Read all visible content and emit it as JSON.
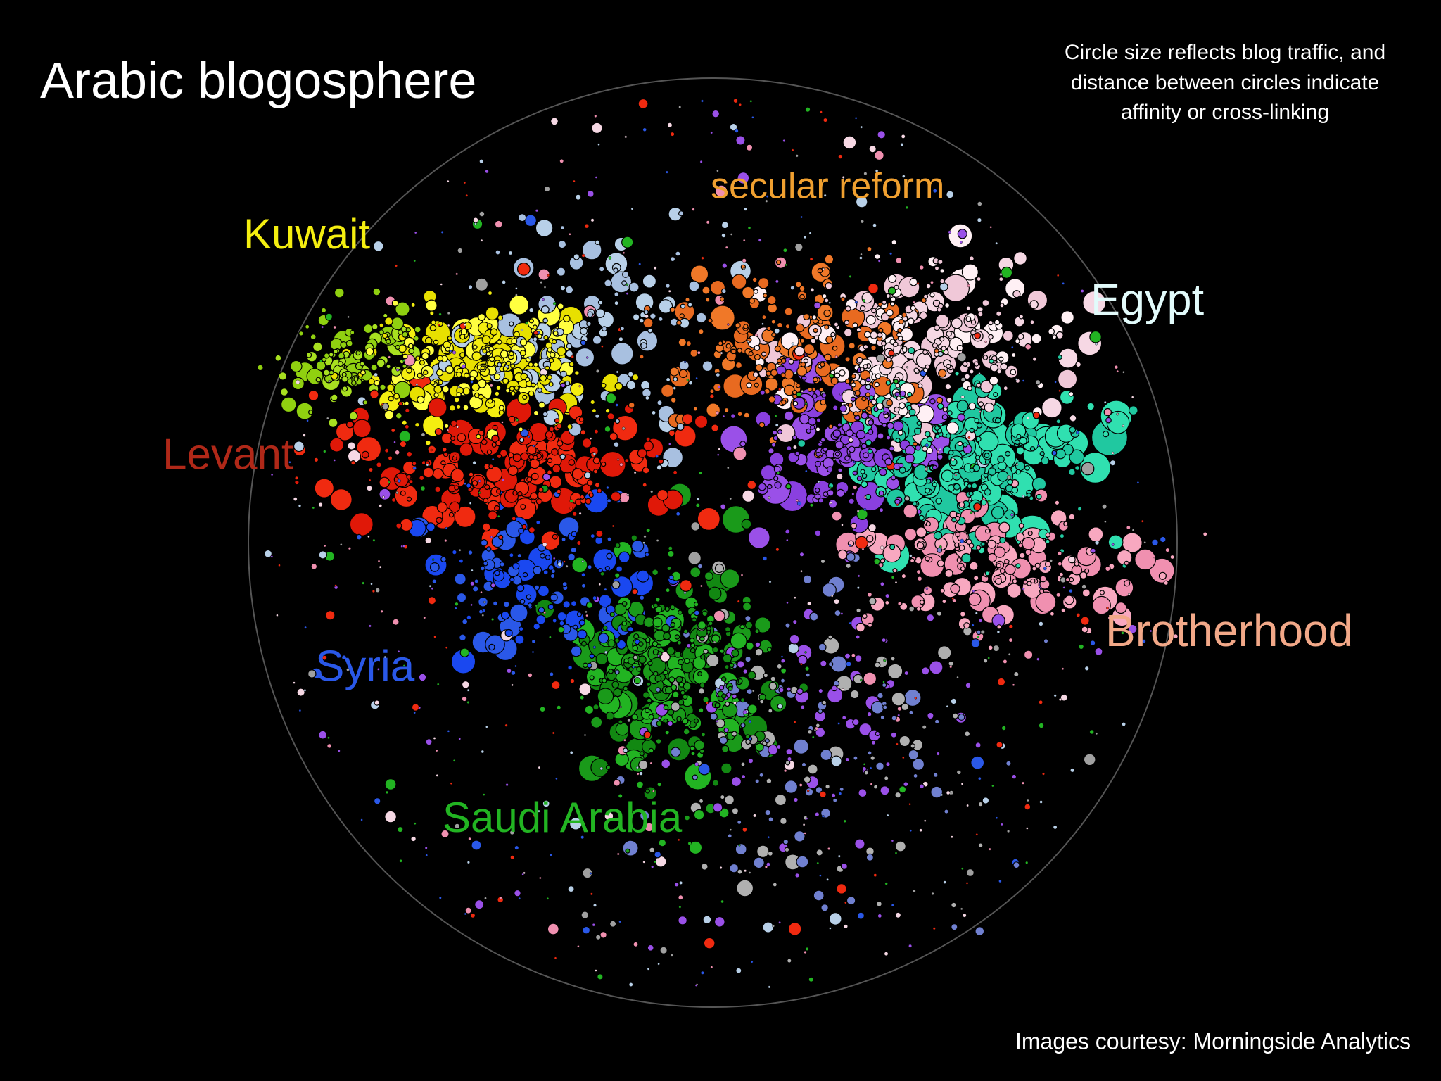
{
  "title": "Arabic blogosphere",
  "note": [
    "Circle size reflects blog traffic, and",
    "distance between circles indicate",
    "affinity or cross-linking"
  ],
  "credit": "Images courtesy: Morningside Analytics",
  "clusters": [
    {
      "label": "Kuwait",
      "color": "#f4ee10"
    },
    {
      "label": "secular reform",
      "color": "#f0a030"
    },
    {
      "label": "Egypt",
      "color": "#e2fbfb"
    },
    {
      "label": "Levant",
      "color": "#b02818"
    },
    {
      "label": "Syria",
      "color": "#2a58e8"
    },
    {
      "label": "Saudi Arabia",
      "color": "#22b422"
    },
    {
      "label": "Brotherhood",
      "color": "#f2a888"
    }
  ]
}
